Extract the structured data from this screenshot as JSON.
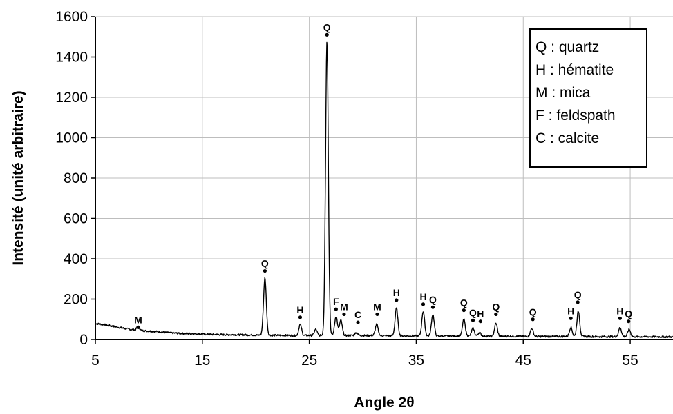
{
  "chart_data": {
    "type": "line",
    "xlabel": "Angle 2θ",
    "ylabel": "Intensité (unité arbitraire)",
    "xlim": [
      5,
      59
    ],
    "ylim": [
      0,
      1600
    ],
    "x_ticks": [
      5,
      15,
      25,
      35,
      45,
      55
    ],
    "y_ticks": [
      0,
      200,
      400,
      600,
      800,
      1000,
      1200,
      1400,
      1600
    ],
    "grid": "both",
    "legend_position": "top-right",
    "legend": [
      "Q : quartz",
      "H : hématite",
      "M : mica",
      "F : feldspath",
      "C : calcite"
    ],
    "series": [
      {
        "color": "#000000",
        "baseline": [
          [
            5,
            80
          ],
          [
            6,
            72
          ],
          [
            7,
            62
          ],
          [
            8,
            52
          ],
          [
            9,
            45
          ],
          [
            10,
            42
          ],
          [
            11,
            38
          ],
          [
            12,
            33
          ],
          [
            13,
            30
          ],
          [
            14,
            29
          ],
          [
            15,
            27
          ],
          [
            16,
            25
          ],
          [
            17,
            24
          ],
          [
            18,
            24
          ],
          [
            19,
            23
          ],
          [
            20,
            22
          ],
          [
            22,
            21
          ],
          [
            24,
            20
          ],
          [
            26,
            20
          ],
          [
            28,
            20
          ],
          [
            30,
            20
          ],
          [
            32,
            19
          ],
          [
            34,
            18
          ],
          [
            36,
            18
          ],
          [
            38,
            17
          ],
          [
            40,
            17
          ],
          [
            42,
            16
          ],
          [
            44,
            16
          ],
          [
            46,
            15
          ],
          [
            48,
            15
          ],
          [
            50,
            15
          ],
          [
            52,
            14
          ],
          [
            54,
            14
          ],
          [
            56,
            14
          ],
          [
            59,
            13
          ]
        ],
        "peaks": [
          [
            9.0,
            65
          ],
          [
            20.85,
            305
          ],
          [
            24.15,
            75
          ],
          [
            25.6,
            50
          ],
          [
            26.65,
            1480
          ],
          [
            27.5,
            115
          ],
          [
            27.95,
            95
          ],
          [
            29.4,
            35
          ],
          [
            31.3,
            75
          ],
          [
            33.15,
            155
          ],
          [
            35.65,
            140
          ],
          [
            36.55,
            125
          ],
          [
            39.45,
            100
          ],
          [
            40.3,
            55
          ],
          [
            40.9,
            35
          ],
          [
            42.45,
            80
          ],
          [
            45.8,
            55
          ],
          [
            49.45,
            60
          ],
          [
            50.15,
            140
          ],
          [
            54.05,
            60
          ],
          [
            54.9,
            50
          ]
        ]
      }
    ],
    "annotations": [
      {
        "x": 9.0,
        "y": 60,
        "label": "M"
      },
      {
        "x": 20.85,
        "y": 340,
        "label": "Q"
      },
      {
        "x": 24.15,
        "y": 110,
        "label": "H"
      },
      {
        "x": 26.65,
        "y": 1510,
        "label": "Q"
      },
      {
        "x": 27.5,
        "y": 150,
        "label": "F"
      },
      {
        "x": 28.25,
        "y": 125,
        "label": "M"
      },
      {
        "x": 29.55,
        "y": 85,
        "label": "C"
      },
      {
        "x": 31.35,
        "y": 125,
        "label": "M"
      },
      {
        "x": 33.15,
        "y": 195,
        "label": "H"
      },
      {
        "x": 35.65,
        "y": 175,
        "label": "H"
      },
      {
        "x": 36.55,
        "y": 160,
        "label": "Q"
      },
      {
        "x": 39.45,
        "y": 145,
        "label": "Q"
      },
      {
        "x": 40.3,
        "y": 95,
        "label": "Q"
      },
      {
        "x": 41.0,
        "y": 90,
        "label": "H"
      },
      {
        "x": 42.45,
        "y": 125,
        "label": "Q"
      },
      {
        "x": 45.9,
        "y": 100,
        "label": "Q"
      },
      {
        "x": 49.45,
        "y": 105,
        "label": "H"
      },
      {
        "x": 50.1,
        "y": 185,
        "label": "Q"
      },
      {
        "x": 54.05,
        "y": 105,
        "label": "H"
      },
      {
        "x": 54.85,
        "y": 90,
        "label": "Q"
      }
    ]
  }
}
